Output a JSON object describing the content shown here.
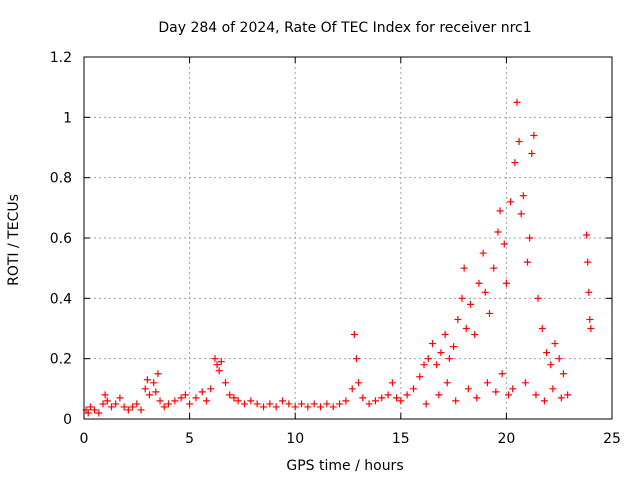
{
  "chart_data": {
    "type": "scatter",
    "title": "Day 284 of 2024, Rate Of TEC Index for receiver nrc1",
    "xlabel": "GPS time / hours",
    "ylabel": "ROTI / TECUs",
    "xlim": [
      0,
      25
    ],
    "ylim": [
      0,
      1.2
    ],
    "xticks": [
      0,
      5,
      10,
      15,
      20,
      25
    ],
    "yticks": [
      0,
      0.2,
      0.4,
      0.6,
      0.8,
      1,
      1.2
    ],
    "ytick_labels": [
      "0",
      "0.2",
      "0.4",
      "0.6",
      "0.8",
      "1",
      "1.2"
    ],
    "grid": true,
    "marker": "+",
    "series": [
      {
        "color": "#ff0000",
        "points": [
          [
            0.1,
            0.03
          ],
          [
            0.2,
            0.02
          ],
          [
            0.3,
            0.04
          ],
          [
            0.5,
            0.03
          ],
          [
            0.7,
            0.02
          ],
          [
            0.9,
            0.05
          ],
          [
            1.0,
            0.08
          ],
          [
            1.1,
            0.06
          ],
          [
            1.3,
            0.04
          ],
          [
            1.5,
            0.05
          ],
          [
            1.7,
            0.07
          ],
          [
            1.9,
            0.04
          ],
          [
            2.1,
            0.03
          ],
          [
            2.3,
            0.04
          ],
          [
            2.5,
            0.05
          ],
          [
            2.7,
            0.03
          ],
          [
            2.9,
            0.1
          ],
          [
            3.0,
            0.13
          ],
          [
            3.1,
            0.08
          ],
          [
            3.3,
            0.12
          ],
          [
            3.4,
            0.09
          ],
          [
            3.5,
            0.15
          ],
          [
            3.6,
            0.06
          ],
          [
            3.8,
            0.04
          ],
          [
            4.0,
            0.05
          ],
          [
            4.3,
            0.06
          ],
          [
            4.6,
            0.07
          ],
          [
            4.8,
            0.08
          ],
          [
            5.0,
            0.05
          ],
          [
            5.3,
            0.07
          ],
          [
            5.6,
            0.09
          ],
          [
            5.8,
            0.06
          ],
          [
            6.0,
            0.1
          ],
          [
            6.2,
            0.2
          ],
          [
            6.3,
            0.18
          ],
          [
            6.4,
            0.16
          ],
          [
            6.5,
            0.19
          ],
          [
            6.7,
            0.12
          ],
          [
            6.9,
            0.08
          ],
          [
            7.1,
            0.07
          ],
          [
            7.3,
            0.06
          ],
          [
            7.6,
            0.05
          ],
          [
            7.9,
            0.06
          ],
          [
            8.2,
            0.05
          ],
          [
            8.5,
            0.04
          ],
          [
            8.8,
            0.05
          ],
          [
            9.1,
            0.04
          ],
          [
            9.4,
            0.06
          ],
          [
            9.7,
            0.05
          ],
          [
            10.0,
            0.04
          ],
          [
            10.3,
            0.05
          ],
          [
            10.6,
            0.04
          ],
          [
            10.9,
            0.05
          ],
          [
            11.2,
            0.04
          ],
          [
            11.5,
            0.05
          ],
          [
            11.8,
            0.04
          ],
          [
            12.1,
            0.05
          ],
          [
            12.4,
            0.06
          ],
          [
            12.7,
            0.1
          ],
          [
            12.8,
            0.28
          ],
          [
            12.9,
            0.2
          ],
          [
            13.0,
            0.12
          ],
          [
            13.2,
            0.07
          ],
          [
            13.5,
            0.05
          ],
          [
            13.8,
            0.06
          ],
          [
            14.1,
            0.07
          ],
          [
            14.4,
            0.08
          ],
          [
            14.6,
            0.12
          ],
          [
            14.8,
            0.07
          ],
          [
            15.0,
            0.06
          ],
          [
            15.3,
            0.08
          ],
          [
            15.6,
            0.1
          ],
          [
            15.9,
            0.14
          ],
          [
            16.1,
            0.18
          ],
          [
            16.3,
            0.2
          ],
          [
            16.5,
            0.25
          ],
          [
            16.7,
            0.18
          ],
          [
            16.9,
            0.22
          ],
          [
            17.1,
            0.28
          ],
          [
            17.3,
            0.2
          ],
          [
            17.5,
            0.24
          ],
          [
            17.7,
            0.33
          ],
          [
            17.9,
            0.4
          ],
          [
            18.0,
            0.5
          ],
          [
            18.1,
            0.3
          ],
          [
            18.3,
            0.38
          ],
          [
            18.5,
            0.28
          ],
          [
            18.7,
            0.45
          ],
          [
            18.9,
            0.55
          ],
          [
            19.0,
            0.42
          ],
          [
            19.2,
            0.35
          ],
          [
            19.4,
            0.5
          ],
          [
            19.6,
            0.62
          ],
          [
            19.7,
            0.69
          ],
          [
            19.9,
            0.58
          ],
          [
            20.0,
            0.45
          ],
          [
            20.2,
            0.72
          ],
          [
            20.4,
            0.85
          ],
          [
            20.5,
            1.05
          ],
          [
            20.6,
            0.92
          ],
          [
            20.7,
            0.68
          ],
          [
            20.8,
            0.74
          ],
          [
            21.0,
            0.52
          ],
          [
            21.1,
            0.6
          ],
          [
            21.2,
            0.88
          ],
          [
            21.3,
            0.94
          ],
          [
            21.5,
            0.4
          ],
          [
            21.7,
            0.3
          ],
          [
            21.9,
            0.22
          ],
          [
            22.1,
            0.18
          ],
          [
            22.3,
            0.25
          ],
          [
            22.5,
            0.2
          ],
          [
            22.7,
            0.15
          ],
          [
            22.9,
            0.08
          ],
          [
            23.8,
            0.61
          ],
          [
            23.85,
            0.52
          ],
          [
            23.9,
            0.42
          ],
          [
            23.95,
            0.33
          ],
          [
            24.0,
            0.3
          ],
          [
            16.2,
            0.05
          ],
          [
            16.8,
            0.08
          ],
          [
            17.2,
            0.12
          ],
          [
            17.6,
            0.06
          ],
          [
            18.2,
            0.1
          ],
          [
            18.6,
            0.07
          ],
          [
            19.1,
            0.12
          ],
          [
            19.5,
            0.09
          ],
          [
            19.8,
            0.15
          ],
          [
            20.1,
            0.08
          ],
          [
            20.3,
            0.1
          ],
          [
            20.9,
            0.12
          ],
          [
            21.4,
            0.08
          ],
          [
            21.8,
            0.06
          ],
          [
            22.2,
            0.1
          ],
          [
            22.6,
            0.07
          ]
        ]
      }
    ]
  }
}
